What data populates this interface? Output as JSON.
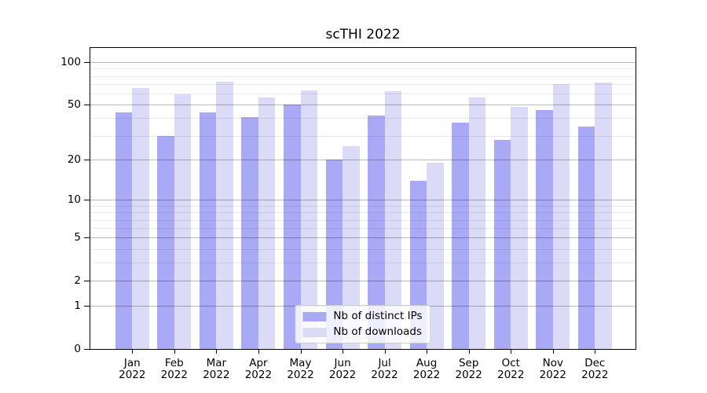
{
  "title": "scTHI 2022",
  "chart_data": {
    "type": "bar",
    "title": "scTHI 2022",
    "categories": [
      "Jan 2022",
      "Feb 2022",
      "Mar 2022",
      "Apr 2022",
      "May 2022",
      "Jun 2022",
      "Jul 2022",
      "Aug 2022",
      "Sep 2022",
      "Oct 2022",
      "Nov 2022",
      "Dec 2022"
    ],
    "series": [
      {
        "name": "Nb of distinct IPs",
        "color": "#a9a9f6",
        "values": [
          44,
          30,
          44,
          41,
          50,
          20,
          42,
          14,
          37,
          28,
          46,
          35
        ]
      },
      {
        "name": "Nb of downloads",
        "color": "#dbdbf8",
        "values": [
          66,
          59,
          73,
          56,
          63,
          25,
          62,
          19,
          56,
          48,
          70,
          72
        ]
      }
    ],
    "yscale": "log1p",
    "ylim": [
      0,
      126
    ],
    "y_major_ticks": [
      0,
      1,
      2,
      5,
      10,
      20,
      50,
      100
    ],
    "y_tick_labels": [
      "0",
      "1",
      "2",
      "5",
      "10",
      "20",
      "50",
      "100"
    ],
    "y_minor_gridlines": [
      3,
      4,
      6,
      7,
      8,
      9,
      30,
      40,
      60,
      70,
      80,
      90
    ],
    "grid": true,
    "legend_position": "lower center",
    "colors": {
      "bar_ips": "#a9a9f6",
      "bar_downloads": "#dbdbf8",
      "axis": "#000000",
      "legend_border": "#cccccc"
    }
  }
}
